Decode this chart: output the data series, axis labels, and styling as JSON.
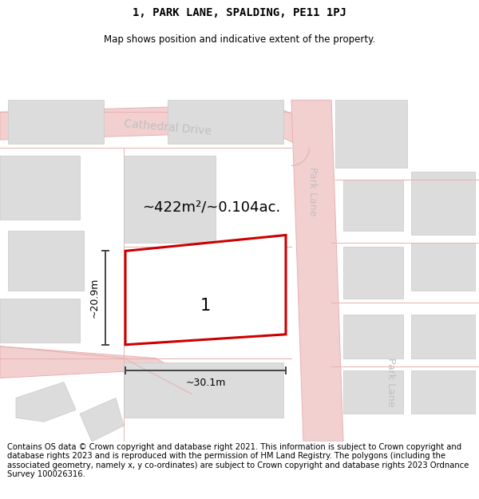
{
  "title": "1, PARK LANE, SPALDING, PE11 1PJ",
  "subtitle": "Map shows position and indicative extent of the property.",
  "footer": "Contains OS data © Crown copyright and database right 2021. This information is subject to Crown copyright and database rights 2023 and is reproduced with the permission of HM Land Registry. The polygons (including the associated geometry, namely x, y co-ordinates) are subject to Crown copyright and database rights 2023 Ordnance Survey 100026316.",
  "map_bg": "#f7f5f5",
  "road_color": "#f2d0d0",
  "road_edge_color": "#e8b0b0",
  "building_fill": "#dcdcdc",
  "building_edge": "#c8c8c8",
  "white_bg": "#ffffff",
  "highlight_outline": "#cc0000",
  "street_label_color": "#c0c0c0",
  "street_label_fontsize": 9,
  "title_fontsize": 10,
  "subtitle_fontsize": 8.5,
  "footer_fontsize": 7.2,
  "area_label": "~422m²/~0.104ac.",
  "area_label_fontsize": 13,
  "parcel_label": "1",
  "parcel_label_fontsize": 15,
  "width_label": "~30.1m",
  "height_label": "~20.9m",
  "dim_label_fontsize": 9,
  "fig_width": 6.0,
  "fig_height": 6.25
}
